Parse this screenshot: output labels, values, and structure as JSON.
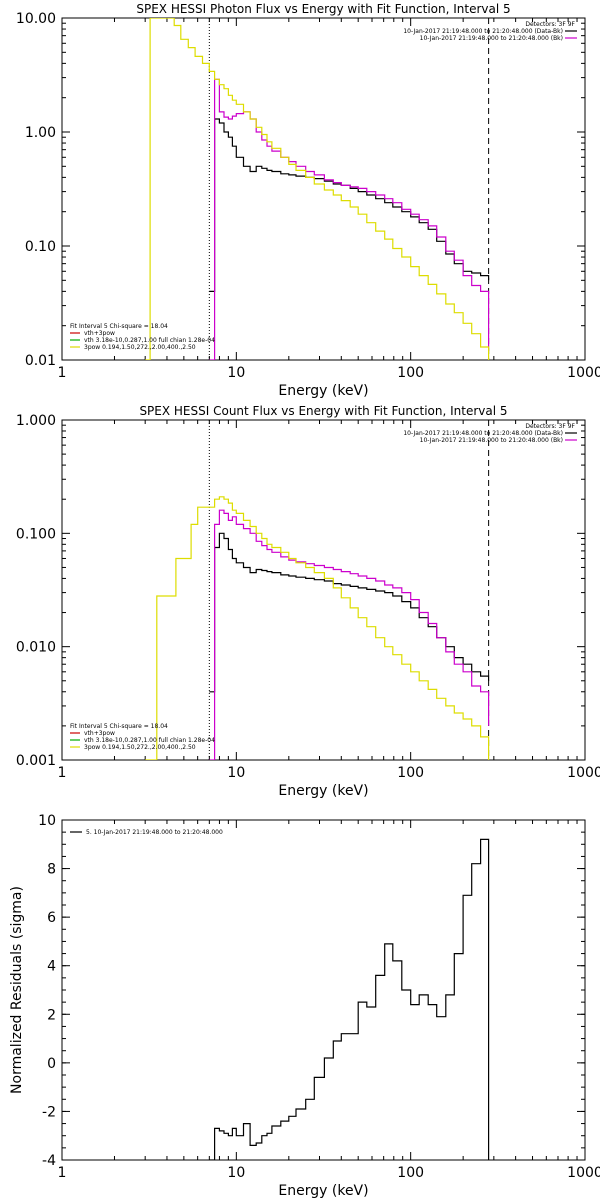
{
  "chart_data": [
    {
      "type": "line",
      "title": "SPEX HESSI Photon Flux vs Energy with Fit Function, Interval 5",
      "xlabel": "Energy (keV)",
      "ylabel": "",
      "x_scale": "log",
      "y_scale": "log",
      "xlim": [
        1,
        1000
      ],
      "ylim": [
        0.01,
        10
      ],
      "x_ticks": [
        {
          "v": 1,
          "label": "1"
        },
        {
          "v": 10,
          "label": "10"
        },
        {
          "v": 100,
          "label": "100"
        },
        {
          "v": 1000,
          "label": "1000"
        }
      ],
      "y_ticks": [
        {
          "v": 0.01,
          "label": "0.01"
        },
        {
          "v": 0.1,
          "label": "0.10"
        },
        {
          "v": 1,
          "label": "1.00"
        },
        {
          "v": 10,
          "label": "10.00"
        }
      ],
      "vlines": [
        {
          "x": 7,
          "style": "dotted"
        },
        {
          "x": 280,
          "style": "dashed"
        }
      ],
      "legend_top": {
        "placement": "top-right",
        "header": "Detectors: 3F 9F",
        "entries": [
          {
            "text": "10-Jan-2017 21:19:48.000 to 21:20:48.000 (Data-Bk)",
            "color": "#000000"
          },
          {
            "text": "10-Jan-2017 21:19:48.000 to 21:20:48.000 (Bk)",
            "color": "#cc00cc"
          }
        ]
      },
      "legend_bottom": {
        "placement": "bottom-left",
        "header": "Fit Interval 5   Chi-square = 18.04",
        "entries": [
          {
            "text": "vth+3pow",
            "color": "#cc0000"
          },
          {
            "text": "vth 3.18e-10,0.287,1.00  full chian 1.28e-04",
            "color": "#00aa00"
          },
          {
            "text": "3pow 0.194,1.50,272.,2.00,400.,2.50",
            "color": "#dddd00"
          }
        ]
      },
      "series": [
        {
          "color": "#000000",
          "x": [
            7,
            7.5,
            8,
            8.5,
            9,
            9.5,
            10,
            11,
            12,
            13,
            14,
            15,
            16,
            18,
            20,
            22,
            25,
            28,
            32,
            36,
            40,
            45,
            50,
            56,
            63,
            71,
            79,
            89,
            100,
            112,
            126,
            141,
            159,
            178,
            200,
            224,
            252,
            280
          ],
          "y": [
            0.04,
            1.3,
            1.2,
            1.0,
            0.9,
            0.75,
            0.6,
            0.5,
            0.45,
            0.5,
            0.48,
            0.46,
            0.45,
            0.43,
            0.42,
            0.41,
            0.4,
            0.39,
            0.37,
            0.35,
            0.34,
            0.32,
            0.3,
            0.28,
            0.26,
            0.24,
            0.22,
            0.2,
            0.18,
            0.16,
            0.14,
            0.11,
            0.085,
            0.07,
            0.06,
            0.058,
            0.055,
            0.05
          ]
        },
        {
          "color": "#cc00cc",
          "x": [
            7,
            7.5,
            8,
            8.5,
            9,
            9.5,
            10,
            11,
            12,
            13,
            14,
            15,
            16,
            18,
            20,
            22,
            25,
            28,
            32,
            36,
            40,
            45,
            50,
            56,
            63,
            71,
            79,
            89,
            100,
            112,
            126,
            141,
            159,
            178,
            200,
            224,
            252,
            280
          ],
          "y": [
            0.01,
            2.9,
            1.5,
            1.35,
            1.3,
            1.38,
            1.45,
            1.5,
            1.3,
            1.0,
            0.85,
            0.75,
            0.68,
            0.6,
            0.55,
            0.5,
            0.45,
            0.42,
            0.38,
            0.36,
            0.34,
            0.33,
            0.32,
            0.3,
            0.28,
            0.26,
            0.24,
            0.21,
            0.19,
            0.17,
            0.15,
            0.12,
            0.09,
            0.075,
            0.055,
            0.045,
            0.04,
            0.012
          ]
        },
        {
          "color": "#dddd00",
          "x": [
            3,
            3.2,
            3.5,
            3.8,
            4,
            4.4,
            4.8,
            5.3,
            5.8,
            6.4,
            7,
            7.5,
            8,
            8.5,
            9,
            9.5,
            10,
            11,
            12,
            13,
            14,
            15,
            16,
            18,
            20,
            22,
            25,
            28,
            32,
            36,
            40,
            45,
            50,
            56,
            63,
            71,
            79,
            89,
            100,
            112,
            126,
            141,
            159,
            178,
            200,
            224,
            252,
            280
          ],
          "y": [
            0.01,
            10,
            10,
            10,
            10,
            8.6,
            6.5,
            5.5,
            4.6,
            4.0,
            3.4,
            2.9,
            2.6,
            2.4,
            2.1,
            1.9,
            1.75,
            1.5,
            1.3,
            1.1,
            0.95,
            0.82,
            0.72,
            0.6,
            0.52,
            0.46,
            0.4,
            0.35,
            0.31,
            0.28,
            0.25,
            0.22,
            0.19,
            0.16,
            0.135,
            0.115,
            0.095,
            0.08,
            0.066,
            0.055,
            0.046,
            0.038,
            0.031,
            0.026,
            0.021,
            0.017,
            0.013,
            0.01
          ]
        }
      ]
    },
    {
      "type": "line",
      "title": "SPEX HESSI Count Flux vs Energy with Fit Function, Interval 5",
      "xlabel": "Energy (keV)",
      "ylabel": "",
      "x_scale": "log",
      "y_scale": "log",
      "xlim": [
        1,
        1000
      ],
      "ylim": [
        0.001,
        1
      ],
      "x_ticks": [
        {
          "v": 1,
          "label": "1"
        },
        {
          "v": 10,
          "label": "10"
        },
        {
          "v": 100,
          "label": "100"
        },
        {
          "v": 1000,
          "label": "1000"
        }
      ],
      "y_ticks": [
        {
          "v": 0.001,
          "label": "0.001"
        },
        {
          "v": 0.01,
          "label": "0.010"
        },
        {
          "v": 0.1,
          "label": "0.100"
        },
        {
          "v": 1,
          "label": "1.000"
        }
      ],
      "vlines": [
        {
          "x": 7,
          "style": "dotted"
        },
        {
          "x": 280,
          "style": "dashed"
        }
      ],
      "legend_top": {
        "placement": "top-right",
        "header": "Detectors: 3F 9F",
        "entries": [
          {
            "text": "10-Jan-2017 21:19:48.000 to 21:20:48.000 (Data-Bk)",
            "color": "#000000"
          },
          {
            "text": "10-Jan-2017 21:19:48.000 to 21:20:48.000 (Bk)",
            "color": "#cc00cc"
          }
        ]
      },
      "legend_bottom": {
        "placement": "bottom-left",
        "header": "Fit Interval 5   Chi-square = 18.04",
        "entries": [
          {
            "text": "vth+3pow",
            "color": "#cc0000"
          },
          {
            "text": "vth 3.18e-10,0.287,1.00  full chian 1.28e-04",
            "color": "#00aa00"
          },
          {
            "text": "3pow 0.194,1.50,272.,2.00,400.,2.50",
            "color": "#dddd00"
          }
        ]
      },
      "series": [
        {
          "color": "#000000",
          "x": [
            7,
            7.5,
            8,
            8.5,
            9,
            9.5,
            10,
            11,
            12,
            13,
            14,
            15,
            16,
            18,
            20,
            22,
            25,
            28,
            32,
            36,
            40,
            45,
            50,
            56,
            63,
            71,
            79,
            89,
            100,
            112,
            126,
            141,
            159,
            178,
            200,
            224,
            252,
            280
          ],
          "y": [
            0.004,
            0.075,
            0.1,
            0.09,
            0.072,
            0.06,
            0.055,
            0.05,
            0.045,
            0.048,
            0.047,
            0.046,
            0.045,
            0.043,
            0.042,
            0.041,
            0.04,
            0.039,
            0.038,
            0.036,
            0.035,
            0.034,
            0.033,
            0.032,
            0.031,
            0.03,
            0.028,
            0.025,
            0.022,
            0.018,
            0.015,
            0.012,
            0.01,
            0.008,
            0.007,
            0.006,
            0.0055,
            0.005
          ]
        },
        {
          "color": "#cc00cc",
          "x": [
            7,
            7.5,
            8,
            8.5,
            9,
            9.5,
            10,
            11,
            12,
            13,
            14,
            15,
            16,
            18,
            20,
            22,
            25,
            28,
            32,
            36,
            40,
            45,
            50,
            56,
            63,
            71,
            79,
            89,
            100,
            112,
            126,
            141,
            159,
            178,
            200,
            224,
            252,
            280
          ],
          "y": [
            0.001,
            0.12,
            0.16,
            0.15,
            0.13,
            0.14,
            0.12,
            0.11,
            0.1,
            0.085,
            0.078,
            0.072,
            0.068,
            0.062,
            0.058,
            0.056,
            0.054,
            0.052,
            0.05,
            0.048,
            0.046,
            0.044,
            0.042,
            0.04,
            0.038,
            0.035,
            0.033,
            0.03,
            0.026,
            0.02,
            0.016,
            0.012,
            0.009,
            0.007,
            0.006,
            0.0045,
            0.004,
            0.002
          ]
        },
        {
          "color": "#dddd00",
          "x": [
            3,
            3.5,
            4,
            4.5,
            5,
            5.5,
            6,
            6.5,
            7,
            7.5,
            8,
            8.5,
            9,
            9.5,
            10,
            11,
            12,
            13,
            14,
            15,
            16,
            18,
            20,
            22,
            25,
            28,
            32,
            36,
            40,
            45,
            50,
            56,
            63,
            71,
            79,
            89,
            100,
            112,
            126,
            141,
            159,
            178,
            200,
            224,
            252,
            280
          ],
          "y": [
            0.001,
            0.028,
            0.028,
            0.06,
            0.06,
            0.12,
            0.17,
            0.17,
            0.17,
            0.2,
            0.21,
            0.2,
            0.185,
            0.16,
            0.15,
            0.13,
            0.115,
            0.1,
            0.09,
            0.08,
            0.075,
            0.068,
            0.06,
            0.055,
            0.05,
            0.045,
            0.04,
            0.033,
            0.027,
            0.022,
            0.018,
            0.015,
            0.012,
            0.01,
            0.0085,
            0.007,
            0.006,
            0.005,
            0.0042,
            0.0035,
            0.003,
            0.0026,
            0.0023,
            0.002,
            0.0016,
            0.001
          ]
        }
      ]
    },
    {
      "type": "line",
      "title": "",
      "xlabel": "Energy (keV)",
      "ylabel": "Normalized Residuals (sigma)",
      "x_scale": "log",
      "y_scale": "linear",
      "xlim": [
        1,
        1000
      ],
      "ylim": [
        -4,
        10
      ],
      "x_ticks": [
        {
          "v": 1,
          "label": "1"
        },
        {
          "v": 10,
          "label": "10"
        },
        {
          "v": 100,
          "label": "100"
        },
        {
          "v": 1000,
          "label": "1000"
        }
      ],
      "y_ticks": [
        {
          "v": -4,
          "label": "-4"
        },
        {
          "v": -2,
          "label": "-2"
        },
        {
          "v": 0,
          "label": "0"
        },
        {
          "v": 2,
          "label": "2"
        },
        {
          "v": 4,
          "label": "4"
        },
        {
          "v": 6,
          "label": "6"
        },
        {
          "v": 8,
          "label": "8"
        },
        {
          "v": 10,
          "label": "10"
        }
      ],
      "vlines": [],
      "legend_top": {
        "placement": "top-left",
        "header": "",
        "entries": [
          {
            "text": "5. 10-Jan-2017 21:19:48.000 to 21:20:48.000",
            "color": "#000000"
          }
        ]
      },
      "series": [
        {
          "color": "#000000",
          "x": [
            7,
            7.5,
            8,
            8.5,
            9,
            9.5,
            10,
            11,
            12,
            13,
            14,
            15,
            16,
            18,
            20,
            22,
            25,
            28,
            32,
            36,
            40,
            45,
            50,
            56,
            63,
            71,
            79,
            89,
            100,
            112,
            126,
            141,
            159,
            178,
            200,
            224,
            252,
            280
          ],
          "y": [
            -4,
            -2.7,
            -2.8,
            -2.9,
            -3.0,
            -2.7,
            -3.0,
            -2.5,
            -3.4,
            -3.3,
            -3.0,
            -2.9,
            -2.6,
            -2.4,
            -2.2,
            -1.9,
            -1.5,
            -0.6,
            0.2,
            0.9,
            1.2,
            1.2,
            2.5,
            2.3,
            3.6,
            4.9,
            4.2,
            3.0,
            2.4,
            2.8,
            2.4,
            1.9,
            2.8,
            4.5,
            6.9,
            8.2,
            9.2,
            -4
          ]
        }
      ]
    }
  ]
}
